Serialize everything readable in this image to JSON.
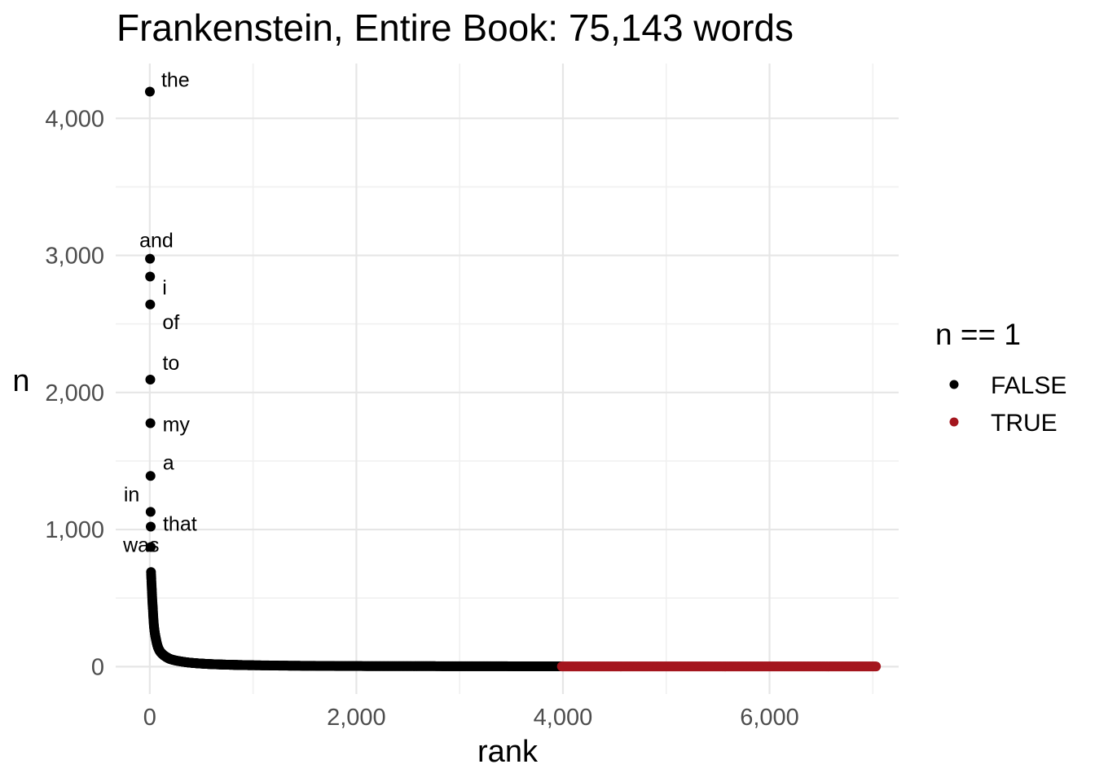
{
  "chart_data": {
    "type": "scatter",
    "title": "Frankenstein, Entire Book: 75,143 words",
    "xlabel": "rank",
    "ylabel": "n",
    "xlim": [
      -330,
      7250
    ],
    "ylim": [
      -200,
      4400
    ],
    "x_ticks": [
      0,
      2000,
      4000,
      6000
    ],
    "x_tick_labels": [
      "0",
      "2,000",
      "4,000",
      "6,000"
    ],
    "y_ticks": [
      0,
      1000,
      2000,
      3000,
      4000
    ],
    "y_tick_labels": [
      "0",
      "1,000",
      "2,000",
      "3,000",
      "4,000"
    ],
    "grid": true,
    "legend": {
      "title": "n == 1",
      "position": "right",
      "entries": [
        {
          "label": "FALSE",
          "color": "#000000"
        },
        {
          "label": "TRUE",
          "color": "#a4161e"
        }
      ]
    },
    "labeled_points": [
      {
        "rank": 1,
        "n": 4195,
        "word": "the"
      },
      {
        "rank": 2,
        "n": 2976,
        "word": "and"
      },
      {
        "rank": 3,
        "n": 2846,
        "word": "i"
      },
      {
        "rank": 4,
        "n": 2642,
        "word": "of"
      },
      {
        "rank": 5,
        "n": 2094,
        "word": "to"
      },
      {
        "rank": 6,
        "n": 1776,
        "word": "my"
      },
      {
        "rank": 7,
        "n": 1391,
        "word": "a"
      },
      {
        "rank": 8,
        "n": 1129,
        "word": "in"
      },
      {
        "rank": 9,
        "n": 1021,
        "word": "that"
      },
      {
        "rank": 10,
        "n": 873,
        "word": "was"
      }
    ],
    "series": [
      {
        "name": "FALSE",
        "color": "#000000",
        "rank_range": [
          1,
          3980
        ],
        "tail_points": [
          {
            "rank": 12,
            "n": 690
          },
          {
            "rank": 15,
            "n": 640
          },
          {
            "rank": 20,
            "n": 560
          },
          {
            "rank": 30,
            "n": 420
          },
          {
            "rank": 40,
            "n": 300
          },
          {
            "rank": 60,
            "n": 200
          },
          {
            "rank": 80,
            "n": 140
          },
          {
            "rank": 100,
            "n": 110
          },
          {
            "rank": 150,
            "n": 75
          },
          {
            "rank": 200,
            "n": 55
          },
          {
            "rank": 300,
            "n": 38
          },
          {
            "rank": 500,
            "n": 22
          },
          {
            "rank": 800,
            "n": 13
          },
          {
            "rank": 1200,
            "n": 8
          },
          {
            "rank": 2000,
            "n": 4
          },
          {
            "rank": 3000,
            "n": 3
          },
          {
            "rank": 3980,
            "n": 2
          }
        ]
      },
      {
        "name": "TRUE",
        "color": "#a4161e",
        "rank_range": [
          3990,
          7030
        ],
        "n": 1
      }
    ]
  }
}
